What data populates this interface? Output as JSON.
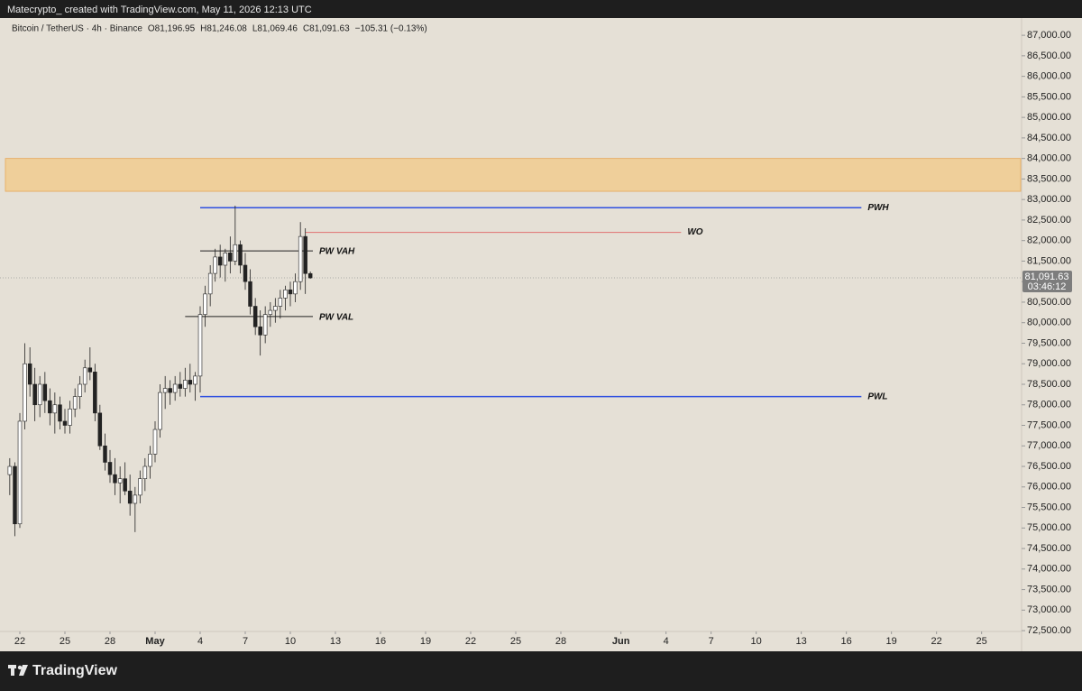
{
  "header": {
    "credit": "Matecrypto_ created with TradingView.com, May 11, 2026 12:13 UTC"
  },
  "footer": {
    "brand": "TradingView"
  },
  "chart_data": {
    "type": "candlestick",
    "symbol": "Bitcoin / TetherUS · 4h · Binance",
    "ohlc_labels": [
      "O81,196.95",
      "H81,246.08",
      "L81,069.46",
      "C81,091.63",
      "−105.31 (−0.13%)"
    ],
    "x": [
      -0.67,
      -0.33,
      0,
      0.33,
      0.67,
      1,
      1.33,
      1.67,
      2,
      2.33,
      2.67,
      3,
      3.33,
      3.67,
      4,
      4.33,
      4.67,
      5,
      5.33,
      5.67,
      6,
      6.33,
      6.67,
      7,
      7.33,
      7.67,
      8,
      8.33,
      8.67,
      9,
      9.33,
      9.67,
      10,
      10.33,
      10.67,
      11,
      11.33,
      11.67,
      12,
      12.33,
      12.67,
      13,
      13.33,
      13.67,
      14,
      14.33,
      14.67,
      15,
      15.33,
      15.67,
      16,
      16.33,
      16.67,
      17,
      17.33,
      17.67,
      18,
      18.33,
      18.67,
      19,
      19.33
    ],
    "open": [
      76300,
      76500,
      75100,
      77600,
      79000,
      78500,
      78000,
      78500,
      78100,
      77800,
      78000,
      77600,
      77500,
      77900,
      78200,
      78500,
      78900,
      78800,
      77800,
      77000,
      76600,
      76300,
      76100,
      76200,
      75900,
      75600,
      75800,
      76200,
      76500,
      76800,
      77400,
      78300,
      78400,
      78300,
      78500,
      78400,
      78600,
      78500,
      78700,
      80200,
      80700,
      81200,
      81600,
      81400,
      81700,
      81500,
      81900,
      81400,
      81000,
      80400,
      79900,
      79700,
      80200,
      80300,
      80400,
      80600,
      80800,
      80700,
      81000,
      82100,
      81196.95
    ],
    "high": [
      76700,
      76600,
      77800,
      79500,
      79400,
      78900,
      78700,
      78800,
      78400,
      78300,
      78200,
      77900,
      78100,
      78400,
      78700,
      79100,
      79400,
      79000,
      78000,
      77300,
      76900,
      76700,
      76500,
      76600,
      76300,
      76000,
      76400,
      76700,
      77000,
      77600,
      78500,
      78700,
      78600,
      78700,
      78800,
      78900,
      79000,
      78800,
      80400,
      80900,
      81400,
      81800,
      81900,
      81800,
      82100,
      82850,
      82000,
      81700,
      81300,
      80600,
      80300,
      80400,
      80500,
      80600,
      80800,
      80900,
      81000,
      81200,
      82450,
      82300,
      81246.08
    ],
    "low": [
      75800,
      74800,
      75000,
      77400,
      78200,
      77600,
      77700,
      77800,
      77500,
      77300,
      77400,
      77300,
      77300,
      77700,
      77900,
      78300,
      78600,
      77600,
      76900,
      76400,
      76100,
      75800,
      75600,
      75800,
      75300,
      74900,
      75600,
      75900,
      76200,
      76600,
      77200,
      77900,
      78000,
      78100,
      78200,
      78200,
      78300,
      78100,
      78300,
      79900,
      80400,
      81000,
      81100,
      81000,
      81200,
      81400,
      81200,
      80800,
      80200,
      79700,
      79200,
      79500,
      79900,
      80000,
      80100,
      80300,
      80400,
      80500,
      80800,
      80700,
      81069.46
    ],
    "close": [
      76500,
      75100,
      77600,
      79000,
      78500,
      78000,
      78500,
      78100,
      77800,
      78000,
      77600,
      77500,
      77900,
      78200,
      78500,
      78900,
      78800,
      77800,
      77000,
      76600,
      76300,
      76100,
      76200,
      75900,
      75600,
      75800,
      76200,
      76500,
      76800,
      77400,
      78300,
      78400,
      78300,
      78500,
      78400,
      78600,
      78500,
      78700,
      80200,
      80700,
      81200,
      81600,
      81400,
      81700,
      81500,
      81900,
      81400,
      81000,
      80400,
      79900,
      79700,
      80200,
      80300,
      80400,
      80600,
      80800,
      80700,
      81000,
      82100,
      81196.95,
      81091.63
    ],
    "up_color": "#ffffff",
    "down_color": "#222222",
    "xlim": [
      -0.84,
      66.6
    ],
    "xticks": [
      {
        "value": 0,
        "label": "22"
      },
      {
        "value": 3,
        "label": "25"
      },
      {
        "value": 6,
        "label": "28"
      },
      {
        "value": 9,
        "label": "May"
      },
      {
        "value": 12,
        "label": "4"
      },
      {
        "value": 15,
        "label": "7"
      },
      {
        "value": 18,
        "label": "10"
      },
      {
        "value": 21,
        "label": "13"
      },
      {
        "value": 24,
        "label": "16"
      },
      {
        "value": 27,
        "label": "19"
      },
      {
        "value": 30,
        "label": "22"
      },
      {
        "value": 33,
        "label": "25"
      },
      {
        "value": 36,
        "label": "28"
      },
      {
        "value": 40,
        "label": "Jun"
      },
      {
        "value": 43,
        "label": "4"
      },
      {
        "value": 46,
        "label": "7"
      },
      {
        "value": 49,
        "label": "10"
      },
      {
        "value": 52,
        "label": "13"
      },
      {
        "value": 55,
        "label": "16"
      },
      {
        "value": 58,
        "label": "19"
      },
      {
        "value": 61,
        "label": "22"
      },
      {
        "value": 64,
        "label": "25"
      }
    ],
    "ylim": [
      72480,
      87200
    ],
    "yticks": [
      {
        "value": 72500,
        "label": "72,500.00"
      },
      {
        "value": 73000,
        "label": "73,000.00"
      },
      {
        "value": 73500,
        "label": "73,500.00"
      },
      {
        "value": 74000,
        "label": "74,000.00"
      },
      {
        "value": 74500,
        "label": "74,500.00"
      },
      {
        "value": 75000,
        "label": "75,000.00"
      },
      {
        "value": 75500,
        "label": "75,500.00"
      },
      {
        "value": 76000,
        "label": "76,000.00"
      },
      {
        "value": 76500,
        "label": "76,500.00"
      },
      {
        "value": 77000,
        "label": "77,000.00"
      },
      {
        "value": 77500,
        "label": "77,500.00"
      },
      {
        "value": 78000,
        "label": "78,000.00"
      },
      {
        "value": 78500,
        "label": "78,500.00"
      },
      {
        "value": 79000,
        "label": "79,000.00"
      },
      {
        "value": 79500,
        "label": "79,500.00"
      },
      {
        "value": 80000,
        "label": "80,000.00"
      },
      {
        "value": 80500,
        "label": "80,500.00"
      },
      {
        "value": 81000,
        "label": "81,000.00"
      },
      {
        "value": 81500,
        "label": "81,500.00"
      },
      {
        "value": 82000,
        "label": "82,000.00"
      },
      {
        "value": 82500,
        "label": "82,500.00"
      },
      {
        "value": 83000,
        "label": "83,000.00"
      },
      {
        "value": 83500,
        "label": "83,500.00"
      },
      {
        "value": 84000,
        "label": "84,000.00"
      },
      {
        "value": 84500,
        "label": "84,500.00"
      },
      {
        "value": 85000,
        "label": "85,000.00"
      },
      {
        "value": 85500,
        "label": "85,500.00"
      },
      {
        "value": 86000,
        "label": "86,000.00"
      },
      {
        "value": 86500,
        "label": "86,500.00"
      },
      {
        "value": 87000,
        "label": "87,000.00"
      }
    ],
    "zone": {
      "low": 83200,
      "high": 84000,
      "color": "#efcf9a"
    },
    "levels": [
      {
        "label": "PWH",
        "price": 82800,
        "x_start": 12,
        "x_end": 56,
        "color": "#2e4fe0"
      },
      {
        "label": "WO",
        "price": 82200,
        "x_start": 19,
        "x_end": 44,
        "color": "#e07070"
      },
      {
        "label": "PW VAH",
        "price": 81750,
        "x_start": 12,
        "x_end": 19.5,
        "color": "#222222"
      },
      {
        "label": "PW VAL",
        "price": 80150,
        "x_start": 11,
        "x_end": 19.5,
        "color": "#222222"
      },
      {
        "label": "PWL",
        "price": 78200,
        "x_start": 12,
        "x_end": 56,
        "color": "#2e4fe0"
      }
    ],
    "last_price": {
      "value": 81091.63,
      "label": "81,091.63",
      "countdown": "03:46:12"
    }
  }
}
